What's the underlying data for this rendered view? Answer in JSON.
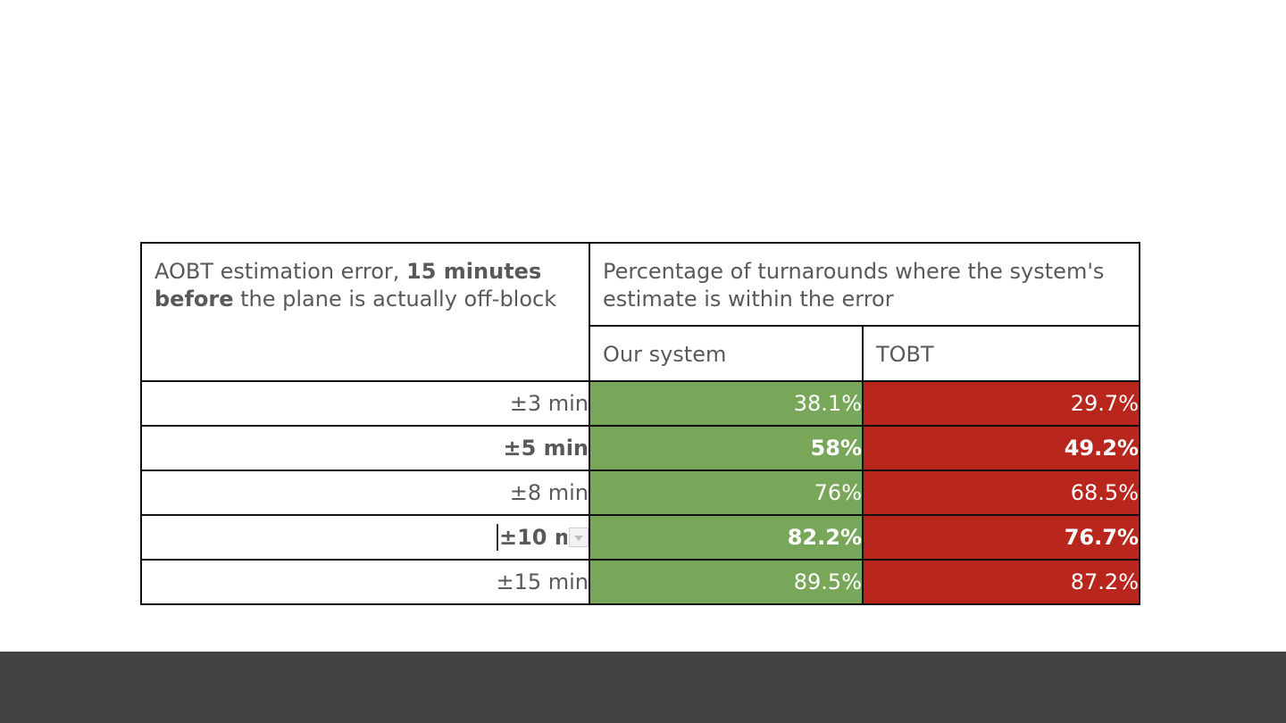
{
  "table": {
    "header_left": {
      "prefix": "AOBT estimation error, ",
      "bold": "15 minutes before",
      "suffix": " the plane is actually off-block"
    },
    "header_right": "Percentage of turnarounds where the system's estimate is within the error",
    "col_ours": "Our system",
    "col_tobt": "TOBT",
    "rows": [
      {
        "label": "±3 min",
        "ours": "38.1%",
        "tobt": "29.7%",
        "bold": false
      },
      {
        "label": "±5 min",
        "ours": "58%",
        "tobt": "49.2%",
        "bold": true
      },
      {
        "label": "±8 min",
        "ours": "76%",
        "tobt": "68.5%",
        "bold": false
      },
      {
        "label": "±10 min",
        "ours": "82.2%",
        "tobt": "76.7%",
        "bold": true
      },
      {
        "label": "±15 min",
        "ours": "89.5%",
        "tobt": "87.2%",
        "bold": false
      }
    ]
  },
  "colors": {
    "ours_cell": "#78a75a",
    "tobt_cell": "#b9261d",
    "footer_bar": "#434343",
    "text": "#595959"
  },
  "icons": {
    "cell_dropdown": "chevron-down-icon"
  }
}
